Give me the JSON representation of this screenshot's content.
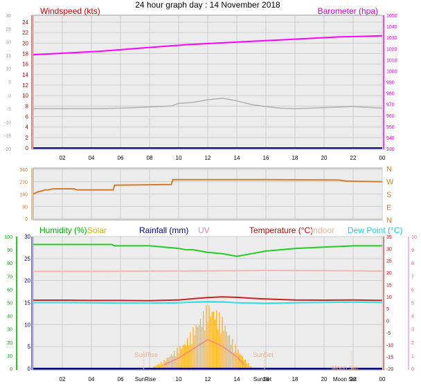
{
  "title": "24 hour graph day : 14 November 2018",
  "colors": {
    "wind": "#b0b0b0",
    "wind_axis": "#c00000",
    "baro": "#ff00ff",
    "dir": "#d27d2d",
    "humidity": "#22cc22",
    "solar": "#ffb020",
    "rain": "#000080",
    "uv": "#ff8080",
    "temp": "#cc2020",
    "indoor": "#f4b8a8",
    "dew": "#30e0e0",
    "grid": "#cccccc",
    "axis_dark": "#000080"
  },
  "time_ticks": [
    "02",
    "04",
    "06",
    "08",
    "10",
    "12",
    "14",
    "16",
    "18",
    "20",
    "22",
    "00"
  ],
  "markers": {
    "sunrise": "SunRise",
    "sunset": "SunSet",
    "moonset": "Moon Set"
  },
  "chart_data": [
    {
      "type": "line",
      "name": "wind-barometer",
      "labels": {
        "left": "Windspeed (kts)",
        "right": "Barometer (hpa)"
      },
      "outer_ticks": [
        "30",
        "25",
        "20",
        "15",
        "10",
        "5",
        "0",
        "-5",
        "-10",
        "-15",
        "-20"
      ],
      "left_ticks": [
        "24",
        "22",
        "20",
        "18",
        "16",
        "14",
        "12",
        "10",
        "8",
        "6",
        "4",
        "2",
        "0"
      ],
      "right_ticks": [
        "1050",
        "1040",
        "1030",
        "1020",
        "1010",
        "1000",
        "990",
        "980",
        "970",
        "960",
        "950",
        "940",
        "930"
      ],
      "xlim": [
        0,
        24
      ],
      "series": [
        {
          "key": "baro",
          "x": [
            0,
            1.5,
            3,
            4.5,
            6,
            7.5,
            9,
            10.5,
            12,
            13.5,
            15,
            16.5,
            18,
            19.5,
            21,
            22.5,
            24
          ],
          "y": [
            1014.5,
            1015.5,
            1016.5,
            1017.5,
            1019,
            1020.5,
            1022,
            1023.5,
            1024.5,
            1025.5,
            1026.5,
            1027.5,
            1028.5,
            1029.5,
            1030.5,
            1031,
            1031.5
          ]
        },
        {
          "key": "wind",
          "x": [
            0,
            2,
            4,
            6,
            8,
            9.5,
            10,
            11,
            12,
            13,
            14,
            15,
            16,
            17,
            18,
            20,
            22,
            24
          ],
          "y": [
            7.5,
            7.5,
            7.5,
            7.6,
            7.8,
            8,
            8.5,
            8.7,
            9.2,
            9.5,
            9,
            8.3,
            7.9,
            7.6,
            7.5,
            7.7,
            7.9,
            7.6
          ]
        }
      ]
    },
    {
      "type": "line",
      "name": "wind-direction",
      "left_ticks": [
        "360",
        "270",
        "180",
        "90",
        "0"
      ],
      "right_ticks": [
        "N",
        "W",
        "S",
        "E",
        "N"
      ],
      "xlim": [
        0,
        24
      ],
      "series": [
        {
          "key": "dir",
          "x": [
            0,
            0.3,
            0.5,
            0.8,
            1.0,
            1.4,
            2.8,
            3.0,
            5.5,
            5.6,
            9.5,
            9.6,
            13,
            16,
            21,
            21.5,
            24
          ],
          "y": [
            180,
            195,
            200,
            210,
            210,
            218,
            218,
            210,
            210,
            245,
            250,
            285,
            285,
            285,
            283,
            275,
            270
          ]
        }
      ]
    },
    {
      "type": "line",
      "name": "humidity-temperature",
      "labels": {
        "humidity": "Humidity (%)",
        "solar": "Solar",
        "rainfall": "Rainfall (mm)",
        "uv": "UV",
        "temperature": "Temperature (°C)",
        "indoor": "Indoor",
        "dewpoint": "Dew Point (°C)"
      },
      "hum_ticks": [
        "100",
        "90",
        "80",
        "70",
        "60",
        "50",
        "40",
        "30",
        "20",
        "10",
        "0"
      ],
      "rain_ticks": [
        "30",
        "25",
        "20",
        "15",
        "10",
        "5",
        "0"
      ],
      "temp_ticks": [
        "35",
        "30",
        "25",
        "20",
        "15",
        "10",
        "5",
        "0",
        "-5",
        "-10",
        "-15",
        "-20"
      ],
      "uv_ticks": [
        "10",
        "9",
        "8",
        "7",
        "6",
        "5",
        "4",
        "3",
        "2",
        "1",
        "0"
      ],
      "xlim": [
        0,
        24
      ],
      "series": [
        {
          "key": "humidity",
          "x": [
            0,
            2,
            4,
            5.4,
            5.6,
            8,
            10,
            10.5,
            11,
            12,
            13,
            14,
            15,
            16,
            18,
            20,
            22,
            24
          ],
          "y": [
            94,
            94,
            94,
            94,
            93,
            93,
            91,
            90,
            90,
            88,
            87,
            85,
            87,
            89,
            91,
            92,
            93,
            93
          ]
        },
        {
          "key": "indoor",
          "x": [
            0,
            4,
            8,
            12,
            16,
            20,
            24
          ],
          "y": [
            20.5,
            20.5,
            20.6,
            20.7,
            20.9,
            20.8,
            20.6
          ]
        },
        {
          "key": "temp",
          "x": [
            0,
            2,
            4,
            6,
            8,
            10,
            11,
            12,
            13,
            14,
            15,
            16,
            17,
            18,
            20,
            22,
            24
          ],
          "y": [
            8.5,
            8.5,
            8.4,
            8.4,
            8.3,
            8.6,
            9.1,
            9.6,
            9.9,
            9.7,
            9.3,
            9.0,
            8.8,
            8.6,
            8.5,
            8.6,
            8.4
          ]
        },
        {
          "key": "dew",
          "x": [
            0,
            2,
            4,
            6,
            8,
            10,
            11,
            12,
            13,
            14,
            15,
            16,
            17,
            18,
            20,
            22,
            24
          ],
          "y": [
            7.5,
            7.5,
            7.4,
            7.3,
            7.3,
            7.4,
            7.7,
            7.9,
            7.8,
            7.4,
            7.3,
            7.1,
            7.2,
            7.4,
            7.6,
            7.7,
            7.5
          ]
        },
        {
          "key": "rain",
          "x": [
            0,
            24
          ],
          "y": [
            0,
            0
          ]
        }
      ],
      "solar": {
        "x": [
          8.3,
          9,
          9.5,
          10,
          10.5,
          11,
          11.5,
          12,
          12.5,
          13,
          13.5,
          14,
          14.5,
          15
        ],
        "y": [
          0.5,
          2,
          3.5,
          5,
          6.5,
          9.5,
          12,
          15,
          14,
          12,
          8,
          5,
          2.5,
          0.5
        ]
      },
      "uv": {
        "x": [
          9,
          10,
          11,
          12,
          13,
          14,
          14.5
        ],
        "y": [
          0.3,
          0.8,
          1.5,
          2.2,
          1.7,
          0.9,
          0.3
        ]
      }
    }
  ]
}
